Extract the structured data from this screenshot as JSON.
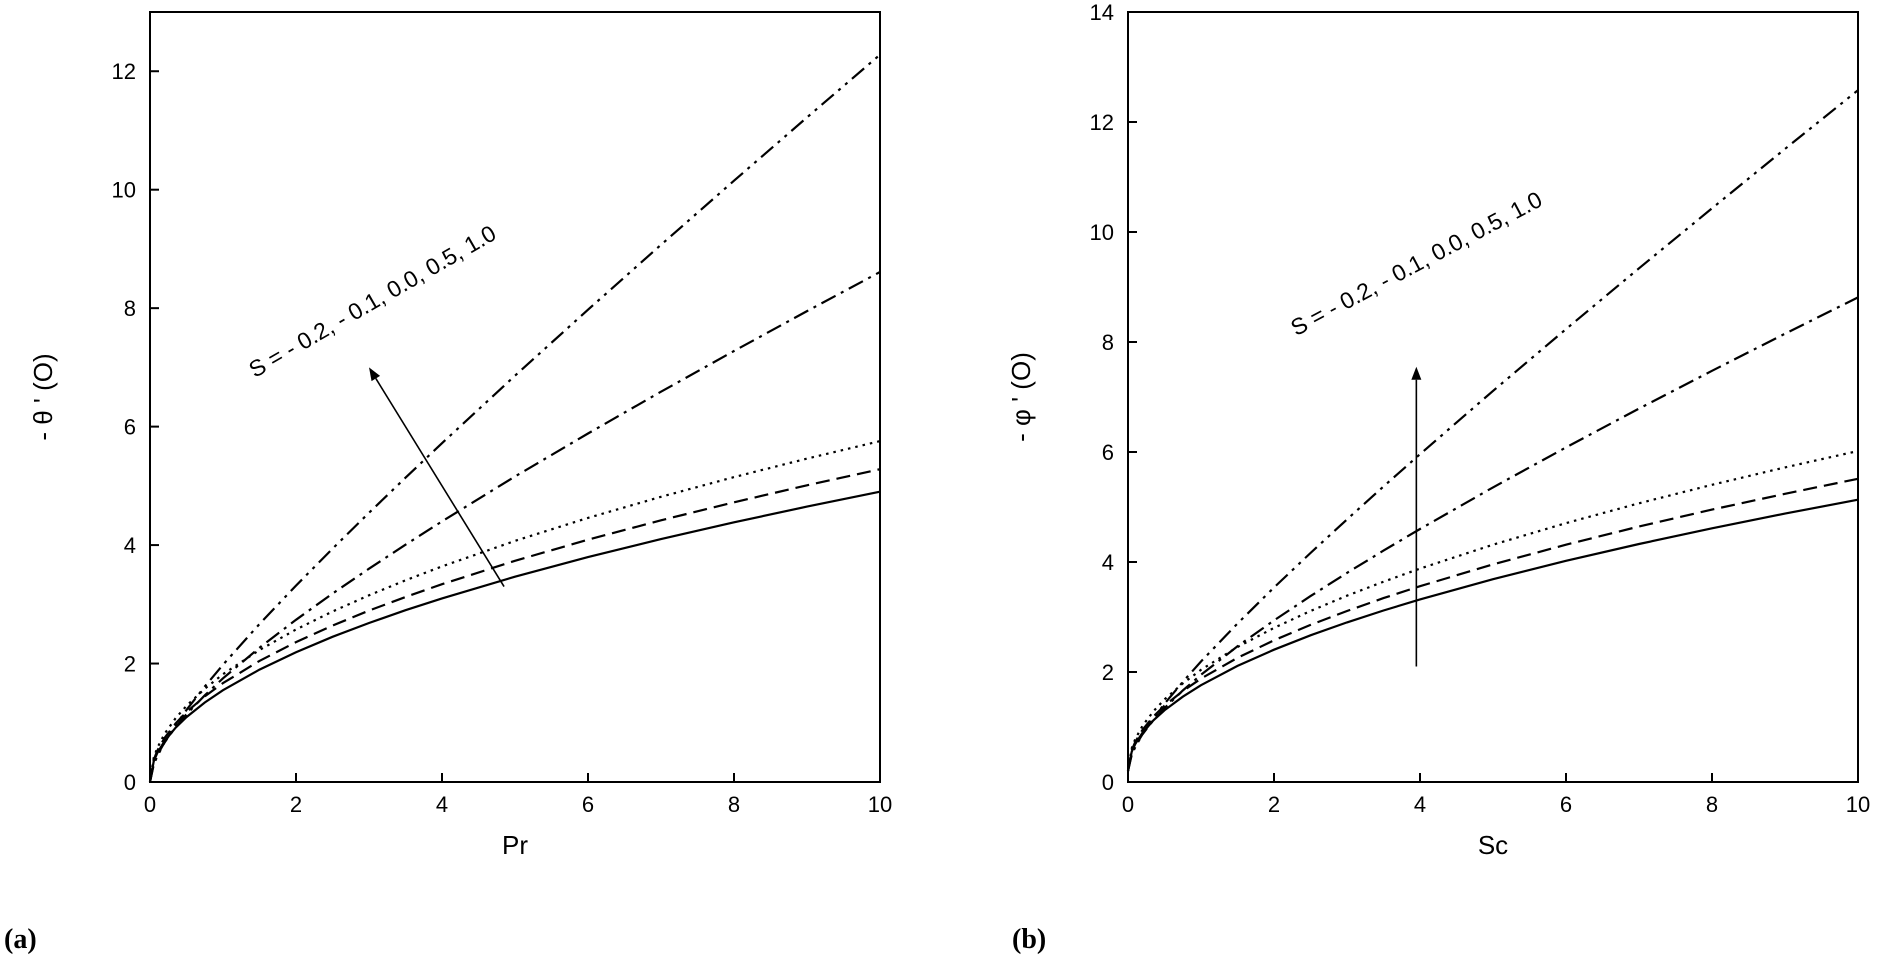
{
  "figure": {
    "background": "#ffffff",
    "ink": "#000000",
    "panel_labels": [
      {
        "id": "a",
        "text": "(a)"
      },
      {
        "id": "b",
        "text": "(b)"
      }
    ]
  },
  "chart_data": [
    {
      "id": "a",
      "type": "line",
      "title": "",
      "xlabel": "Pr",
      "ylabel": "- θ ' (O)",
      "xlim": [
        0,
        10
      ],
      "ylim": [
        0,
        13
      ],
      "xticks": [
        0,
        2,
        4,
        6,
        8,
        10
      ],
      "yticks": [
        0,
        2,
        4,
        6,
        8,
        10,
        12
      ],
      "grid": false,
      "legend": "none",
      "annotation": {
        "text": "S = - 0.2, - 0.1, 0.0, 0.5, 1.0",
        "x": 3.1,
        "y": 8.0,
        "rotation_deg": -30
      },
      "arrow": {
        "from": [
          4.85,
          3.3
        ],
        "to": [
          3.0,
          7.0
        ]
      },
      "x": [
        0,
        0.05,
        0.1,
        0.2,
        0.35,
        0.5,
        0.75,
        1,
        1.5,
        2,
        2.5,
        3,
        3.5,
        4,
        5,
        6,
        7,
        8,
        9,
        10
      ],
      "series": [
        {
          "name": "S = -0.2",
          "style": "solid",
          "values": [
            0,
            0.347,
            0.49,
            0.693,
            0.917,
            1.096,
            1.342,
            1.55,
            1.898,
            2.192,
            2.451,
            2.685,
            2.9,
            3.1,
            3.466,
            3.797,
            4.101,
            4.384,
            4.65,
            4.902
          ]
        },
        {
          "name": "S = -0.1",
          "style": "dashed",
          "values": [
            0,
            0.373,
            0.528,
            0.747,
            0.988,
            1.181,
            1.446,
            1.67,
            2.045,
            2.362,
            2.64,
            2.893,
            3.124,
            3.34,
            3.734,
            4.091,
            4.418,
            4.723,
            5.01,
            5.281
          ]
        },
        {
          "name": "S = 0.0",
          "style": "dotted",
          "values": [
            0,
            0.407,
            0.576,
            0.814,
            1.077,
            1.287,
            1.576,
            1.82,
            2.229,
            2.574,
            2.878,
            3.152,
            3.405,
            3.64,
            4.07,
            4.458,
            4.815,
            5.148,
            5.46,
            5.755
          ]
        },
        {
          "name": "S = 0.5",
          "style": "dashdot",
          "values": [
            0,
            0.313,
            0.456,
            0.671,
            0.927,
            1.144,
            1.463,
            1.75,
            2.267,
            2.738,
            3.18,
            3.602,
            4.007,
            4.4,
            5.157,
            5.884,
            6.59,
            7.277,
            7.95,
            8.611
          ]
        },
        {
          "name": "S = 1.0",
          "style": "dashdotdot",
          "values": [
            0,
            0.29,
            0.436,
            0.668,
            0.959,
            1.218,
            1.613,
            1.98,
            2.667,
            3.316,
            3.939,
            4.545,
            5.138,
            5.72,
            6.86,
            7.974,
            9.07,
            10.151,
            11.22,
            12.279
          ]
        }
      ]
    },
    {
      "id": "b",
      "type": "line",
      "title": "",
      "xlabel": "Sc",
      "ylabel": "- φ ' (O)",
      "xlim": [
        0,
        10
      ],
      "ylim": [
        0,
        14
      ],
      "xticks": [
        0,
        2,
        4,
        6,
        8,
        10
      ],
      "yticks": [
        0,
        2,
        4,
        6,
        8,
        10,
        12,
        14
      ],
      "grid": false,
      "legend": "none",
      "annotation": {
        "text": "S = - 0.2, - 0.1, 0.0, 0.5, 1.0",
        "x": 4.0,
        "y": 9.3,
        "rotation_deg": -28
      },
      "arrow": {
        "from": [
          3.95,
          2.1
        ],
        "to": [
          3.95,
          7.55
        ]
      },
      "x": [
        0,
        0.05,
        0.1,
        0.2,
        0.35,
        0.5,
        0.75,
        1,
        1.5,
        2,
        2.5,
        3,
        3.5,
        4,
        5,
        6,
        7,
        8,
        9,
        10
      ],
      "series": [
        {
          "name": "S = -0.2",
          "style": "solid",
          "values": [
            0.2,
            0.549,
            0.693,
            0.898,
            1.123,
            1.303,
            1.551,
            1.76,
            2.111,
            2.406,
            2.667,
            2.902,
            3.118,
            3.32,
            3.688,
            4.021,
            4.327,
            4.612,
            4.88,
            5.133
          ]
        },
        {
          "name": "S = -0.1",
          "style": "dashed",
          "values": [
            0.2,
            0.576,
            0.731,
            0.951,
            1.194,
            1.388,
            1.655,
            1.88,
            2.258,
            2.576,
            2.856,
            3.11,
            3.343,
            3.56,
            3.957,
            4.315,
            4.645,
            4.952,
            5.24,
            5.513
          ]
        },
        {
          "name": "S = 0.0",
          "style": "dotted",
          "values": [
            0.2,
            0.611,
            0.782,
            1.023,
            1.289,
            1.501,
            1.793,
            2.04,
            2.454,
            2.802,
            3.109,
            3.387,
            3.642,
            3.88,
            4.314,
            4.707,
            5.068,
            5.404,
            5.72,
            6.019
          ]
        },
        {
          "name": "S = 0.5",
          "style": "dashdot",
          "values": [
            0.2,
            0.513,
            0.656,
            0.871,
            1.127,
            1.344,
            1.663,
            1.95,
            2.467,
            2.938,
            3.38,
            3.802,
            4.207,
            4.6,
            5.357,
            6.084,
            6.79,
            7.477,
            8.15,
            8.811
          ]
        },
        {
          "name": "S = 1.0",
          "style": "dashdotdot",
          "values": [
            0.2,
            0.49,
            0.637,
            0.87,
            1.162,
            1.423,
            1.82,
            2.19,
            2.882,
            3.536,
            4.164,
            4.775,
            5.373,
            5.96,
            7.11,
            8.234,
            9.34,
            10.431,
            11.51,
            12.579
          ]
        }
      ]
    }
  ]
}
